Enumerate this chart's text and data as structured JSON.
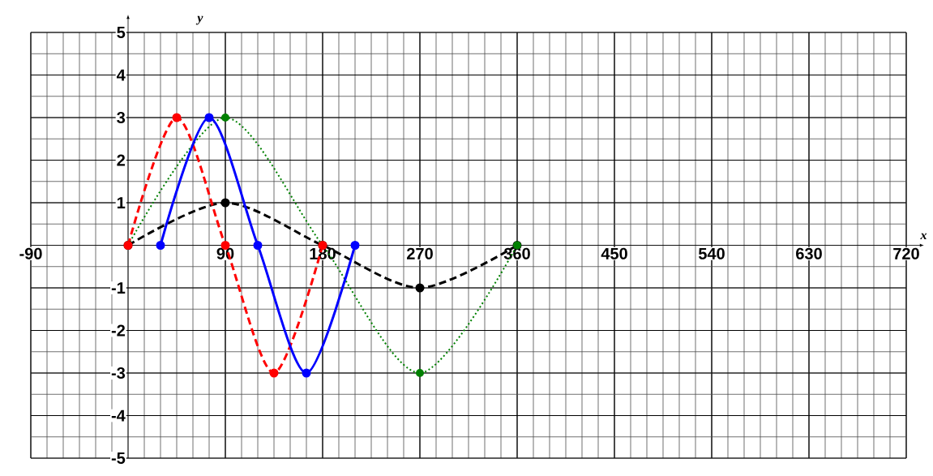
{
  "chart_data": {
    "type": "line",
    "xlabel": "x",
    "ylabel": "y",
    "xlim": [
      -90,
      720
    ],
    "ylim": [
      -5,
      5
    ],
    "xticks": [
      -90,
      90,
      180,
      270,
      360,
      450,
      540,
      630,
      720
    ],
    "yticks": [
      -5,
      -4,
      -3,
      -2,
      -1,
      1,
      2,
      3,
      4,
      5
    ],
    "grid": true,
    "marker": "circle",
    "series": [
      {
        "color": "#000000",
        "line_style": "dashed",
        "x": [
          0,
          90,
          180,
          270,
          360
        ],
        "values": [
          0,
          1,
          0,
          -1,
          0
        ]
      },
      {
        "color": "#008000",
        "line_style": "dotted",
        "x": [
          0,
          90,
          180,
          270,
          360
        ],
        "values": [
          0,
          3,
          0,
          -3,
          0
        ]
      },
      {
        "color": "#ff0000",
        "line_style": "dashed",
        "x": [
          0,
          45,
          90,
          135,
          180
        ],
        "values": [
          0,
          3,
          0,
          -3,
          0
        ]
      },
      {
        "color": "#0000ff",
        "line_style": "solid",
        "x": [
          30,
          75,
          120,
          165,
          210
        ],
        "values": [
          0,
          3,
          0,
          -3,
          0
        ]
      }
    ]
  }
}
